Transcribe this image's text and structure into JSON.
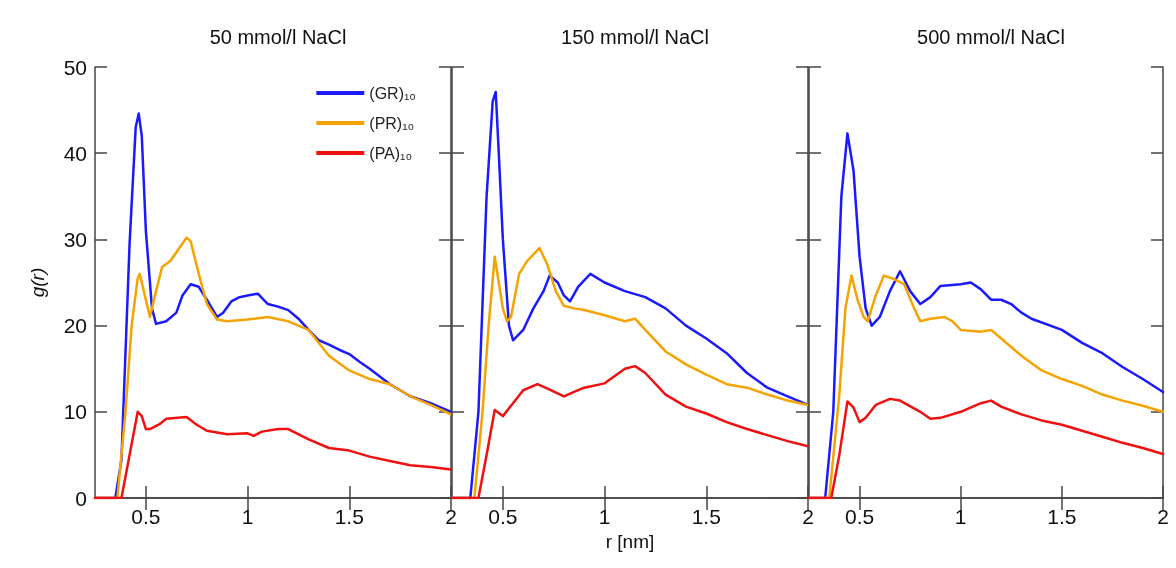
{
  "chart_data": [
    {
      "type": "line",
      "title": "50 mmol/l NaCl",
      "ylabel": "g(r)",
      "xlim": [
        0.25,
        2
      ],
      "xticks": [
        0.5,
        1,
        1.5,
        2
      ],
      "ylim": [
        0,
        50
      ],
      "yticks": [
        0,
        10,
        20,
        30,
        40,
        50
      ],
      "legend": "top right",
      "grid": false,
      "marker": "none",
      "series": [
        {
          "name": "(GR)₁₀",
          "color": "#1a1aff",
          "x": [
            0.25,
            0.35,
            0.38,
            0.42,
            0.45,
            0.465,
            0.48,
            0.5,
            0.53,
            0.55,
            0.6,
            0.65,
            0.68,
            0.72,
            0.76,
            0.8,
            0.85,
            0.88,
            0.92,
            0.96,
            1.0,
            1.05,
            1.1,
            1.15,
            1.2,
            1.25,
            1.3,
            1.35,
            1.4,
            1.45,
            1.5,
            1.55,
            1.6,
            1.7,
            1.8,
            1.9,
            2.0
          ],
          "values": [
            0,
            0,
            4.4,
            29.5,
            43,
            44.6,
            42,
            31,
            22,
            20.2,
            20.5,
            21.5,
            23.5,
            24.8,
            24.5,
            23,
            21,
            21.5,
            22.8,
            23.3,
            23.5,
            23.7,
            22.5,
            22.2,
            21.8,
            20.8,
            19.5,
            18.3,
            17.8,
            17.2,
            16.7,
            15.8,
            15,
            13.2,
            11.8,
            11,
            10
          ]
        },
        {
          "name": "(PR)₁₀",
          "color": "#f5a300",
          "x": [
            0.25,
            0.36,
            0.4,
            0.43,
            0.46,
            0.47,
            0.49,
            0.52,
            0.55,
            0.58,
            0.62,
            0.65,
            0.7,
            0.72,
            0.76,
            0.8,
            0.85,
            0.9,
            1.0,
            1.1,
            1.2,
            1.3,
            1.4,
            1.5,
            1.6,
            1.7,
            1.8,
            1.9,
            2.0
          ],
          "values": [
            0,
            0,
            10,
            20,
            25.5,
            26,
            24,
            21,
            24,
            26.8,
            27.5,
            28.5,
            30.2,
            29.8,
            26,
            22.5,
            20.7,
            20.5,
            20.7,
            21,
            20.5,
            19.5,
            16.5,
            14.8,
            13.8,
            13.2,
            11.8,
            10.8,
            9.7
          ]
        },
        {
          "name": "(PA)₁₀",
          "color": "#f01010",
          "x": [
            0.25,
            0.38,
            0.42,
            0.46,
            0.48,
            0.5,
            0.52,
            0.57,
            0.6,
            0.7,
            0.75,
            0.8,
            0.9,
            1.0,
            1.03,
            1.07,
            1.15,
            1.2,
            1.3,
            1.4,
            1.5,
            1.6,
            1.7,
            1.8,
            1.9,
            2.0
          ],
          "values": [
            0,
            0,
            5,
            10,
            9.5,
            8,
            8,
            8.6,
            9.2,
            9.4,
            8.5,
            7.8,
            7.4,
            7.5,
            7.2,
            7.7,
            8,
            8,
            6.8,
            5.8,
            5.5,
            4.8,
            4.3,
            3.8,
            3.6,
            3.3
          ]
        }
      ]
    },
    {
      "type": "line",
      "title": "150 mmol/l NaCl",
      "xlabel": "r [nm]",
      "xlim": [
        0.25,
        2
      ],
      "xticks": [
        0.5,
        1,
        1.5,
        2
      ],
      "ylim": [
        0,
        50
      ],
      "yticks": [
        0,
        10,
        20,
        30,
        40,
        50
      ],
      "tick_labels": "x",
      "grid": false,
      "marker": "none",
      "series": [
        {
          "color": "#1a1aff",
          "x": [
            0.25,
            0.34,
            0.38,
            0.42,
            0.45,
            0.465,
            0.48,
            0.5,
            0.53,
            0.55,
            0.6,
            0.65,
            0.7,
            0.73,
            0.77,
            0.8,
            0.83,
            0.87,
            0.93,
            1.0,
            1.1,
            1.2,
            1.3,
            1.4,
            1.5,
            1.6,
            1.7,
            1.8,
            1.9,
            2.0
          ],
          "values": [
            0,
            0,
            10,
            35,
            46,
            47.1,
            40,
            30,
            20,
            18.3,
            19.5,
            22,
            24,
            25.8,
            25,
            23.5,
            22.8,
            24.5,
            26,
            25,
            24,
            23.3,
            22,
            20,
            18.5,
            16.8,
            14.5,
            12.8,
            11.8,
            10.8
          ]
        },
        {
          "color": "#f5a300",
          "x": [
            0.25,
            0.36,
            0.4,
            0.43,
            0.46,
            0.48,
            0.5,
            0.52,
            0.54,
            0.58,
            0.62,
            0.68,
            0.72,
            0.76,
            0.8,
            0.85,
            0.9,
            1.0,
            1.1,
            1.15,
            1.2,
            1.3,
            1.4,
            1.5,
            1.6,
            1.7,
            1.8,
            1.9,
            2.0
          ],
          "values": [
            0,
            0,
            10,
            20,
            28,
            25,
            22,
            20.5,
            21,
            26,
            27.5,
            29,
            27,
            24,
            22.3,
            22,
            21.8,
            21.2,
            20.5,
            20.8,
            19.5,
            17,
            15.5,
            14.3,
            13.2,
            12.8,
            12,
            11.3,
            10.8
          ]
        },
        {
          "color": "#f01010",
          "x": [
            0.25,
            0.38,
            0.42,
            0.46,
            0.5,
            0.55,
            0.6,
            0.67,
            0.72,
            0.8,
            0.85,
            0.9,
            1.0,
            1.1,
            1.15,
            1.2,
            1.3,
            1.4,
            1.5,
            1.6,
            1.7,
            1.8,
            1.9,
            2.0
          ],
          "values": [
            0,
            0,
            5,
            10.2,
            9.5,
            11,
            12.5,
            13.2,
            12.7,
            11.8,
            12.3,
            12.8,
            13.3,
            15,
            15.3,
            14.5,
            12,
            10.6,
            9.8,
            8.8,
            8,
            7.3,
            6.6,
            6
          ]
        }
      ]
    },
    {
      "type": "line",
      "title": "500 mmol/l NaCl",
      "xlim": [
        0.25,
        2
      ],
      "xticks": [
        0.5,
        1,
        1.5,
        2
      ],
      "ylim": [
        0,
        50
      ],
      "yticks": [
        0,
        10,
        20,
        30,
        40,
        50
      ],
      "tick_labels": "x",
      "grid": false,
      "marker": "none",
      "series": [
        {
          "color": "#1a1aff",
          "x": [
            0.25,
            0.33,
            0.37,
            0.41,
            0.44,
            0.47,
            0.5,
            0.53,
            0.56,
            0.6,
            0.65,
            0.7,
            0.75,
            0.8,
            0.85,
            0.9,
            1.0,
            1.05,
            1.1,
            1.15,
            1.2,
            1.25,
            1.3,
            1.35,
            1.5,
            1.6,
            1.7,
            1.8,
            1.9,
            2.0
          ],
          "values": [
            0,
            0,
            10,
            35,
            42.3,
            38,
            28,
            22,
            20,
            21,
            24,
            26.3,
            24,
            22.5,
            23.3,
            24.6,
            24.8,
            25,
            24.2,
            23,
            23,
            22.5,
            21.5,
            20.8,
            19.5,
            18,
            16.8,
            15.2,
            13.8,
            12.3
          ]
        },
        {
          "color": "#f5a300",
          "x": [
            0.25,
            0.35,
            0.4,
            0.43,
            0.46,
            0.49,
            0.52,
            0.54,
            0.58,
            0.62,
            0.67,
            0.72,
            0.77,
            0.8,
            0.85,
            0.92,
            0.96,
            1.0,
            1.1,
            1.15,
            1.2,
            1.3,
            1.4,
            1.5,
            1.6,
            1.7,
            1.8,
            1.9,
            2.0
          ],
          "values": [
            0,
            0,
            12,
            22,
            25.8,
            23,
            21,
            20.5,
            23.5,
            25.8,
            25.4,
            24.8,
            22,
            20.5,
            20.8,
            21,
            20.5,
            19.5,
            19.3,
            19.5,
            18.5,
            16.5,
            14.8,
            13.8,
            13,
            12,
            11.3,
            10.7,
            10
          ]
        },
        {
          "color": "#f01010",
          "x": [
            0.25,
            0.36,
            0.4,
            0.44,
            0.47,
            0.5,
            0.53,
            0.58,
            0.65,
            0.7,
            0.8,
            0.85,
            0.9,
            1.0,
            1.1,
            1.15,
            1.2,
            1.3,
            1.4,
            1.5,
            1.6,
            1.7,
            1.8,
            1.9,
            2.0
          ],
          "values": [
            0,
            0,
            5,
            11.2,
            10.5,
            8.8,
            9.3,
            10.8,
            11.5,
            11.3,
            10,
            9.2,
            9.3,
            10,
            11,
            11.3,
            10.6,
            9.7,
            9,
            8.5,
            7.8,
            7.1,
            6.4,
            5.8,
            5.1
          ]
        }
      ]
    }
  ]
}
